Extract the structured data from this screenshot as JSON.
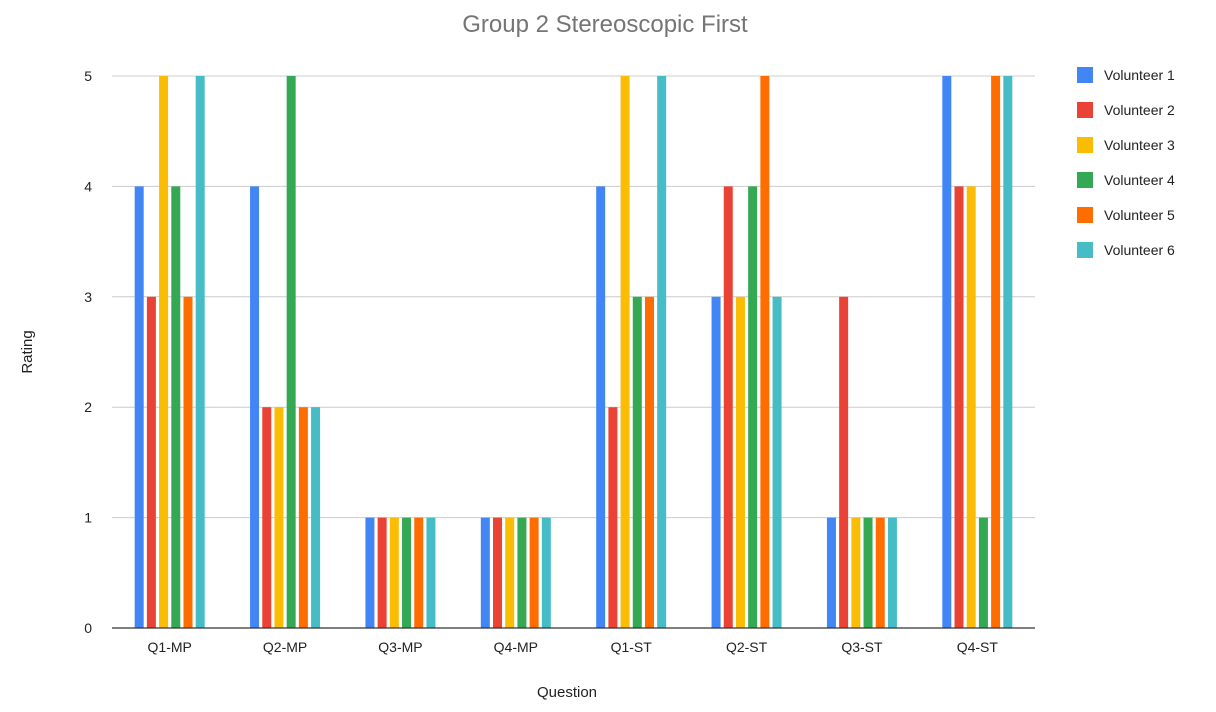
{
  "chart_data": {
    "type": "bar",
    "title": "Group 2 Stereoscopic First",
    "xlabel": "Question",
    "ylabel": "Rating",
    "categories": [
      "Q1-MP",
      "Q2-MP",
      "Q3-MP",
      "Q4-MP",
      "Q1-ST",
      "Q2-ST",
      "Q3-ST",
      "Q4-ST"
    ],
    "ylim": [
      0,
      5
    ],
    "yticks": [
      "0",
      "1",
      "2",
      "3",
      "4",
      "5"
    ],
    "grid": true,
    "legend_position": "right",
    "series": [
      {
        "name": "Volunteer 1",
        "color": "#4285F4",
        "values": [
          4,
          4,
          1,
          1,
          4,
          3,
          1,
          5
        ]
      },
      {
        "name": "Volunteer 2",
        "color": "#EA4335",
        "values": [
          3,
          2,
          1,
          1,
          2,
          4,
          3,
          4
        ]
      },
      {
        "name": "Volunteer 3",
        "color": "#FBBC04",
        "values": [
          5,
          2,
          1,
          1,
          5,
          3,
          1,
          4
        ]
      },
      {
        "name": "Volunteer 4",
        "color": "#34A853",
        "values": [
          4,
          5,
          1,
          1,
          3,
          4,
          1,
          1
        ]
      },
      {
        "name": "Volunteer 5",
        "color": "#FF6D01",
        "values": [
          3,
          2,
          1,
          1,
          3,
          5,
          1,
          5
        ]
      },
      {
        "name": "Volunteer 6",
        "color": "#46BDC6",
        "values": [
          5,
          2,
          1,
          1,
          5,
          3,
          1,
          5
        ]
      }
    ]
  }
}
